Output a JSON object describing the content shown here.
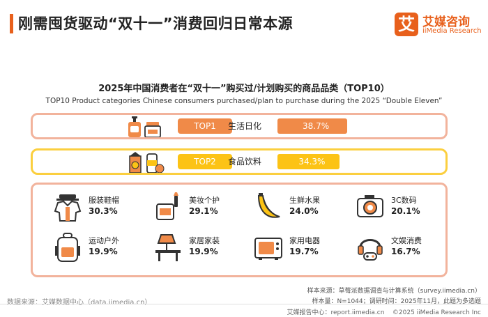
{
  "header": {
    "title": "刚需囤货驱动“双十一”消费回归日常本源",
    "accent_color": "#e8601c"
  },
  "logo": {
    "mark": "艾",
    "name_cn": "艾媒咨询",
    "name_en": "iiMedia Research"
  },
  "chart_data": {
    "type": "bar",
    "title": "2025年中国消费者在“双十一”购买过/计划购买的商品品类（TOP10）",
    "subtitle": "TOP10 Product categories Chinese consumers purchased/plan to purchase during the 2025 “Double Eleven”",
    "unit": "%",
    "top": [
      {
        "rank": "TOP1",
        "name": "生活日化",
        "value": 38.7,
        "label": "38.7%",
        "color": "#f08a48",
        "icons": [
          "pump-bottle-icon",
          "cream-jar-icon"
        ]
      },
      {
        "rank": "TOP2",
        "name": "食品饮料",
        "value": 34.3,
        "label": "34.3%",
        "color": "#fcc315",
        "icons": [
          "juice-carton-icon",
          "drink-can-icon"
        ]
      }
    ],
    "others": [
      {
        "name": "服装鞋帽",
        "value": 30.3,
        "label": "30.3%",
        "icon": "clothing-icon"
      },
      {
        "name": "美妆个护",
        "value": 29.1,
        "label": "29.1%",
        "icon": "makeup-icon"
      },
      {
        "name": "生鲜水果",
        "value": 24.0,
        "label": "24.0%",
        "icon": "banana-icon"
      },
      {
        "name": "3C数码",
        "value": 20.1,
        "label": "20.1%",
        "icon": "camera-icon"
      },
      {
        "name": "运动户外",
        "value": 19.9,
        "label": "19.9%",
        "icon": "backpack-icon"
      },
      {
        "name": "家居家装",
        "value": 19.9,
        "label": "19.9%",
        "icon": "table-lamp-icon"
      },
      {
        "name": "家用电器",
        "value": 19.7,
        "label": "19.7%",
        "icon": "microwave-icon"
      },
      {
        "name": "文娱消费",
        "value": 16.7,
        "label": "16.7%",
        "icon": "headphones-gamepad-icon"
      }
    ]
  },
  "footer": {
    "source": "数据来源：艾媒数据中心（data.iimedia.cn）",
    "notes": [
      "样本来源：草莓派数据调查与计算系统（survey.iimedia.cn）",
      "样本量：N=1044；调研时间：2025年11月，此题为多选题"
    ],
    "report_site": "艾媒报告中心：report.iimedia.cn",
    "copyright": "©2025  iiMedia Research  Inc"
  }
}
